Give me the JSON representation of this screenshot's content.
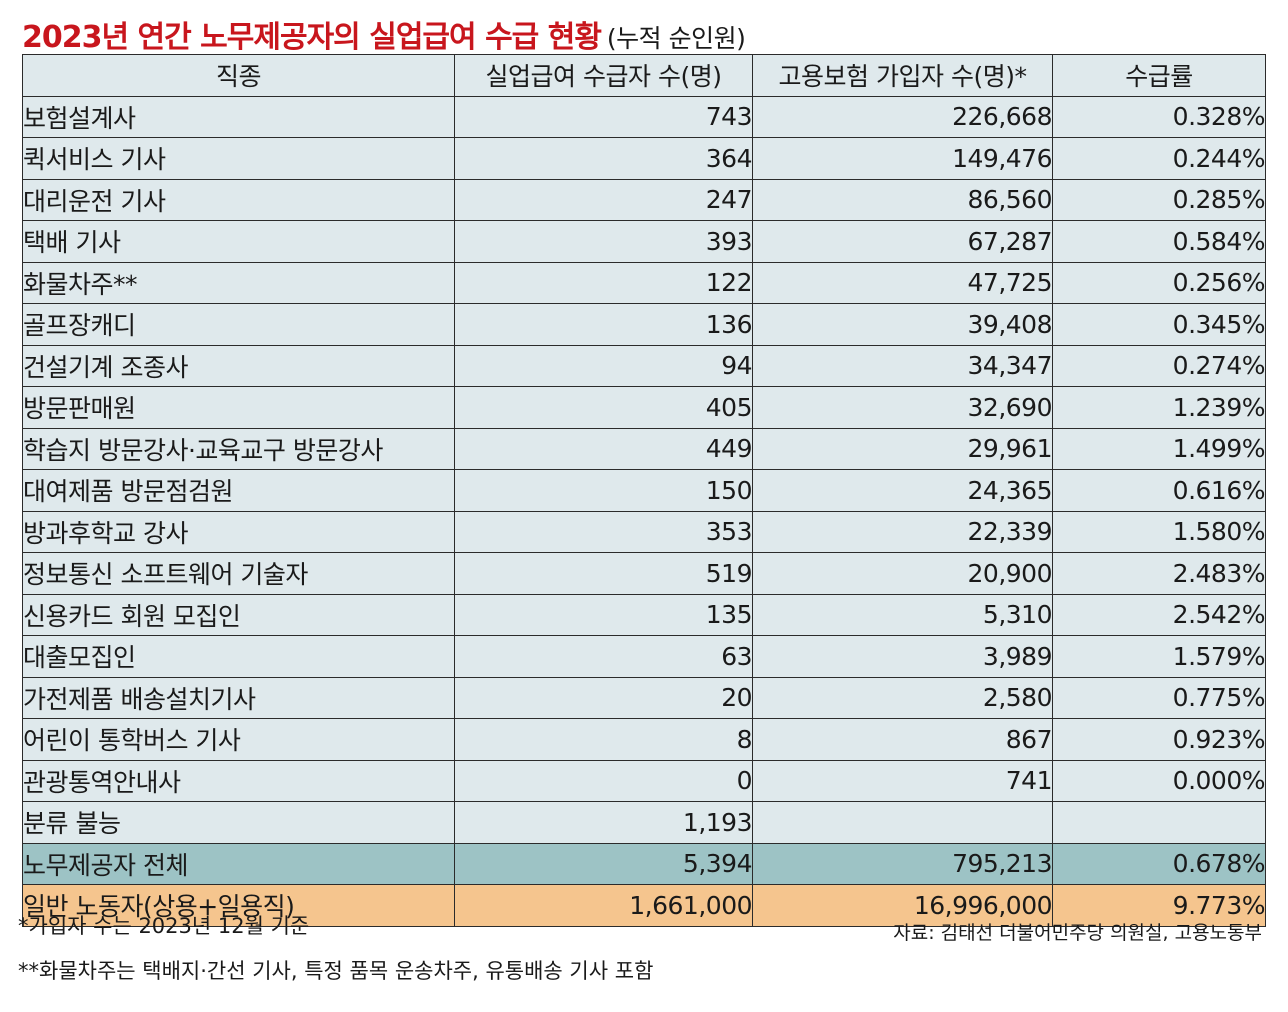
{
  "title": {
    "main": "2023년 연간 노무제공자의 실업급여 수급 현황",
    "sub": "(누적 순인원)"
  },
  "table": {
    "headers": [
      "직종",
      "실업급여 수급자 수(명)",
      "고용보험 가입자 수(명)*",
      "수급률"
    ],
    "rows": [
      {
        "name": "보험설계사",
        "recipients": "743",
        "insured": "226,668",
        "rate": "0.328%"
      },
      {
        "name": "퀵서비스 기사",
        "recipients": "364",
        "insured": "149,476",
        "rate": "0.244%"
      },
      {
        "name": "대리운전 기사",
        "recipients": "247",
        "insured": "86,560",
        "rate": "0.285%"
      },
      {
        "name": "택배 기사",
        "recipients": "393",
        "insured": "67,287",
        "rate": "0.584%"
      },
      {
        "name": "화물차주**",
        "recipients": "122",
        "insured": "47,725",
        "rate": "0.256%"
      },
      {
        "name": "골프장캐디",
        "recipients": "136",
        "insured": "39,408",
        "rate": "0.345%"
      },
      {
        "name": "건설기계 조종사",
        "recipients": "94",
        "insured": "34,347",
        "rate": "0.274%"
      },
      {
        "name": "방문판매원",
        "recipients": "405",
        "insured": "32,690",
        "rate": "1.239%"
      },
      {
        "name": "학습지 방문강사·교육교구 방문강사",
        "recipients": "449",
        "insured": "29,961",
        "rate": "1.499%"
      },
      {
        "name": "대여제품 방문점검원",
        "recipients": "150",
        "insured": "24,365",
        "rate": "0.616%"
      },
      {
        "name": "방과후학교 강사",
        "recipients": "353",
        "insured": "22,339",
        "rate": "1.580%"
      },
      {
        "name": "정보통신 소프트웨어 기술자",
        "recipients": "519",
        "insured": "20,900",
        "rate": "2.483%"
      },
      {
        "name": "신용카드 회원 모집인",
        "recipients": "135",
        "insured": "5,310",
        "rate": "2.542%"
      },
      {
        "name": "대출모집인",
        "recipients": "63",
        "insured": "3,989",
        "rate": "1.579%"
      },
      {
        "name": "가전제품 배송설치기사",
        "recipients": "20",
        "insured": "2,580",
        "rate": "0.775%"
      },
      {
        "name": "어린이 통학버스 기사",
        "recipients": "8",
        "insured": "867",
        "rate": "0.923%"
      },
      {
        "name": "관광통역안내사",
        "recipients": "0",
        "insured": "741",
        "rate": "0.000%"
      },
      {
        "name": "분류 불능",
        "recipients": "1,193",
        "insured": "",
        "rate": ""
      }
    ],
    "total": {
      "name": "노무제공자 전체",
      "recipients": "5,394",
      "insured": "795,213",
      "rate": "0.678%"
    },
    "general": {
      "name": "일반 노동자(상용+일용직)",
      "recipients": "1,661,000",
      "insured": "16,996,000",
      "rate": "9.773%"
    }
  },
  "footnotes": {
    "note1": "*가입자 수는 2023년 12월 기준",
    "note2": "**화물차주는 택배지·간선 기사, 특정 품목 운송차주, 유통배송 기사 포함",
    "source": "자료: 김태선 더불어민주당 의원실, 고용노동부"
  },
  "colors": {
    "title": "#c8161d",
    "row_bg": "#dfe9ec",
    "total_bg": "#9dc3c5",
    "general_bg": "#f5c58e"
  }
}
